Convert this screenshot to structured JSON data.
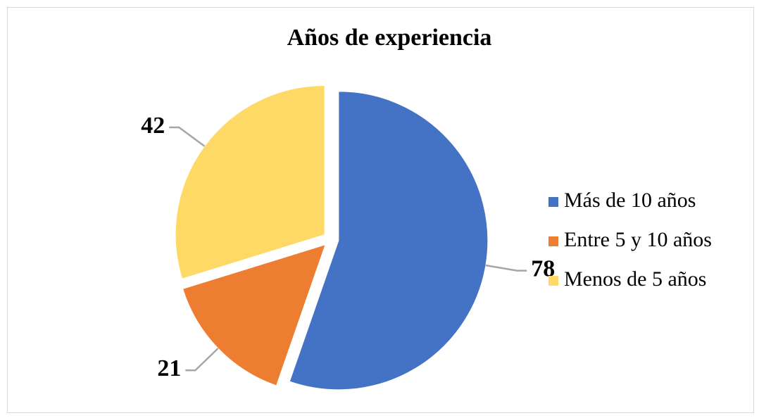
{
  "chart_data": {
    "type": "pie",
    "title": "Años de experiencia",
    "categories": [
      "Más de 10 años",
      "Entre 5 y 10 años",
      "Menos de 5 años"
    ],
    "values": [
      78,
      21,
      42
    ],
    "colors": [
      "#4472c4",
      "#ed7d31",
      "#ffd966"
    ],
    "legend": "right"
  }
}
